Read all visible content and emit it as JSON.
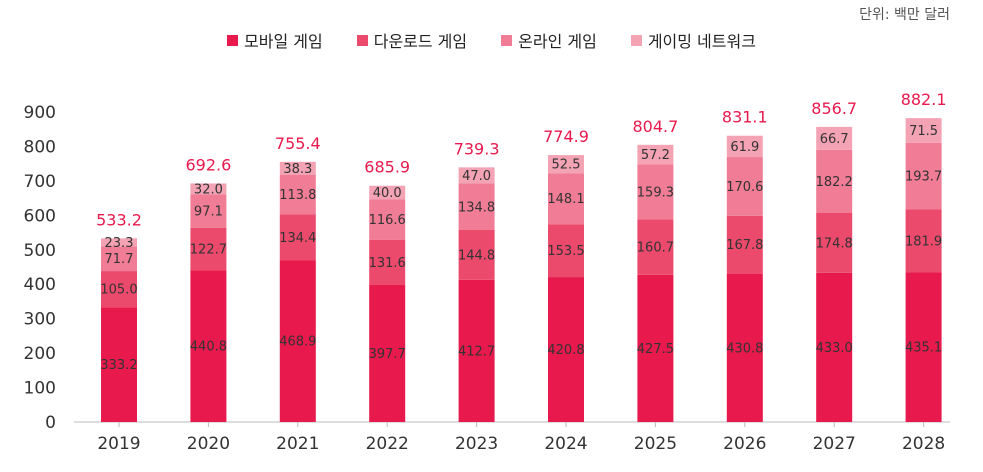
{
  "unit_label": "단위: 백만 달러",
  "colors": {
    "mobile": "#e8194d",
    "download": "#ec4a6d",
    "online": "#f07c96",
    "network": "#f4a3b5",
    "total_label": "#e8194d",
    "axis": "#bbbbbb",
    "tick": "#333333",
    "segment_label": "#333333"
  },
  "chart_data": {
    "type": "bar",
    "stacked": true,
    "categories": [
      "2019",
      "2020",
      "2021",
      "2022",
      "2023",
      "2024",
      "2025",
      "2026",
      "2027",
      "2028"
    ],
    "series": [
      {
        "name": "모바일 게임",
        "values": [
          333.2,
          440.8,
          468.9,
          397.7,
          412.7,
          420.8,
          427.5,
          430.8,
          433.0,
          435.1
        ]
      },
      {
        "name": "다운로드 게임",
        "values": [
          105.0,
          122.7,
          134.4,
          131.6,
          144.8,
          153.5,
          160.7,
          167.8,
          174.8,
          181.9
        ]
      },
      {
        "name": "온라인 게임",
        "values": [
          71.7,
          97.1,
          113.8,
          116.6,
          134.8,
          148.1,
          159.3,
          170.6,
          182.2,
          193.7
        ]
      },
      {
        "name": "게이밍 네트워크",
        "values": [
          23.3,
          32.0,
          38.3,
          40.0,
          47.0,
          52.5,
          57.2,
          61.9,
          66.7,
          71.5
        ]
      }
    ],
    "totals": [
      "533.2",
      "692.6",
      "755.4",
      "685.9",
      "739.3",
      "774.9",
      "804.7",
      "831.1",
      "856.7",
      "882.1"
    ],
    "segment_labels": [
      [
        "333.2",
        "440.8",
        "468.9",
        "397.7",
        "412.7",
        "420.8",
        "427.5",
        "430.8",
        "433.0",
        "435.1"
      ],
      [
        "105.0",
        "122.7",
        "134.4",
        "131.6",
        "144.8",
        "153.5",
        "160.7",
        "167.8",
        "174.8",
        "181.9"
      ],
      [
        "71.7",
        "97.1",
        "113.8",
        "116.6",
        "134.8",
        "148.1",
        "159.3",
        "170.6",
        "182.2",
        "193.7"
      ],
      [
        "23.3",
        "32.0",
        "38.3",
        "40.0",
        "47.0",
        "52.5",
        "57.2",
        "61.9",
        "66.7",
        "71.5"
      ]
    ],
    "yticks": [
      "0",
      "100",
      "200",
      "300",
      "400",
      "500",
      "600",
      "700",
      "800",
      "900"
    ],
    "ylim": [
      0,
      900
    ],
    "grid": false,
    "legend_position": "top-center",
    "title": "",
    "xlabel": "",
    "ylabel": ""
  }
}
